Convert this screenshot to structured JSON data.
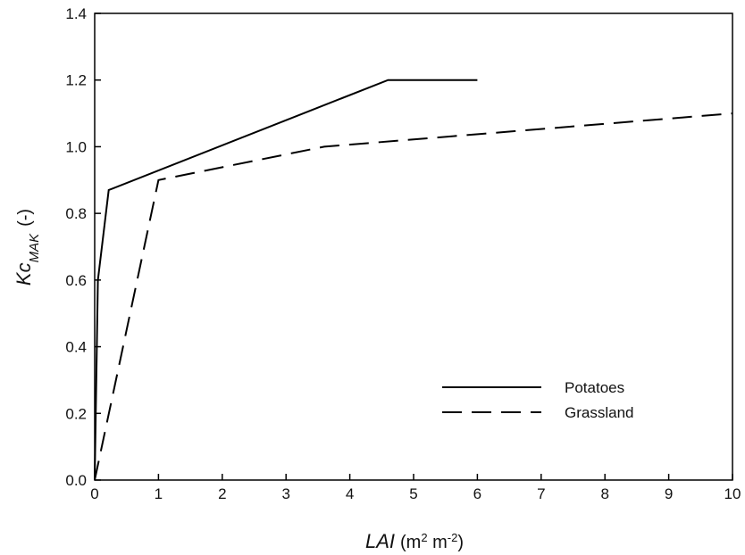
{
  "chart_data": {
    "type": "line",
    "xlim": [
      0,
      10
    ],
    "ylim": [
      0.0,
      1.4
    ],
    "x_ticks": [
      0,
      1,
      2,
      3,
      4,
      5,
      6,
      7,
      8,
      9,
      10
    ],
    "x_tick_labels": [
      "0",
      "1",
      "2",
      "3",
      "4",
      "5",
      "6",
      "7",
      "8",
      "9",
      "10"
    ],
    "y_ticks": [
      0.0,
      0.2,
      0.4,
      0.6,
      0.8,
      1.0,
      1.2,
      1.4
    ],
    "y_tick_labels": [
      "0.0",
      "0.2",
      "0.4",
      "0.6",
      "0.8",
      "1.0",
      "1.2",
      "1.4"
    ],
    "xlabel": {
      "main": "LAI",
      "unit_open": "(m",
      "sup1": "2",
      "unit_mid": " m",
      "sup2": "-2",
      "unit_close": ")"
    },
    "ylabel": {
      "main": "Kc",
      "sub": "MAK",
      "unit": "(-)"
    },
    "grid": false,
    "legend_position": "lower-right",
    "series": [
      {
        "name": "Potatoes",
        "style": "solid",
        "color": "#000000",
        "x": [
          0,
          0.05,
          0.22,
          4.6,
          6.0
        ],
        "y": [
          0.0,
          0.6,
          0.87,
          1.2,
          1.2
        ]
      },
      {
        "name": "Grassland",
        "style": "dashed",
        "color": "#000000",
        "x": [
          0,
          1.0,
          3.6,
          10.0
        ],
        "y": [
          0.0,
          0.9,
          1.0,
          1.1
        ]
      }
    ]
  }
}
